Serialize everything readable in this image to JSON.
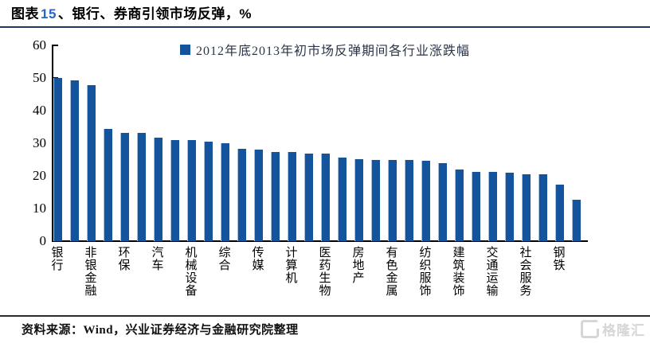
{
  "header": {
    "title_prefix": "图表",
    "title_number": "15",
    "title_rest": "、银行、券商引领市场反弹，%",
    "rule_color": "#1F3864",
    "number_color": "#2667C4"
  },
  "chart_data": {
    "type": "bar",
    "legend": "2012年底2013年初市场反弹期间各行业涨跌幅",
    "title": "银行、券商引领市场反弹",
    "unit": "%",
    "ylim": [
      0,
      60
    ],
    "yticks": [
      0,
      10,
      20,
      30,
      40,
      50,
      60
    ],
    "bar_color": "#14549C",
    "grid": false,
    "legend_position": "top-center",
    "categories": [
      "银行",
      "",
      "非银金融",
      "",
      "环保",
      "",
      "汽车",
      "",
      "机械设备",
      "",
      "综合",
      "",
      "传媒",
      "",
      "计算机",
      "",
      "医药生物",
      "",
      "房地产",
      "",
      "有色金属",
      "",
      "纺织服饰",
      "",
      "建筑装饰",
      "",
      "交通运输",
      "",
      "社会服务",
      "",
      "钢铁",
      ""
    ],
    "values": [
      50.0,
      49.2,
      47.8,
      34.5,
      33.2,
      33.1,
      31.7,
      31.0,
      30.9,
      30.4,
      30.1,
      28.4,
      28.1,
      27.3,
      27.2,
      26.9,
      26.8,
      25.5,
      25.2,
      25.0,
      24.9,
      24.8,
      24.7,
      23.9,
      22.0,
      21.2,
      21.1,
      21.0,
      20.6,
      20.4,
      17.4,
      12.6
    ]
  },
  "footer": {
    "source": "资料来源：Wind，兴业证券经济与金融研究院整理",
    "logo_text": "格隆汇"
  }
}
